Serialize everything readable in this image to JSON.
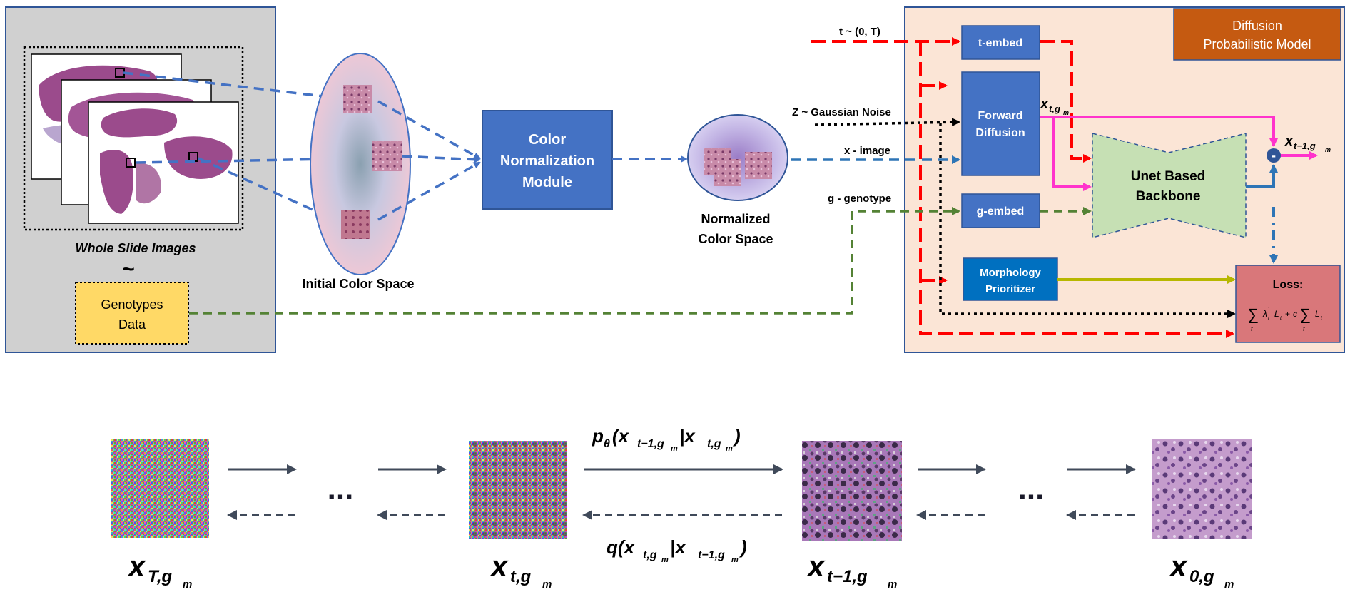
{
  "left_panel": {
    "wsi_caption": "Whole Slide Images",
    "tilde": "~",
    "genotypes_line1": "Genotypes",
    "genotypes_line2": "Data"
  },
  "initial_space": {
    "caption": "Initial Color Space"
  },
  "color_norm": {
    "line1": "Color",
    "line2": "Normalization",
    "line3": "Module"
  },
  "normalized_space": {
    "line1": "Normalized",
    "line2": "Color Space"
  },
  "inputs": {
    "t_label": "t ~ (0, T)",
    "z_label": "Z ~ Gaussian Noise",
    "x_label": "x - image",
    "g_label": "g - genotype"
  },
  "model": {
    "title_line1": "Diffusion",
    "title_line2": "Probabilistic Model",
    "t_embed": "t-embed",
    "forward_line1": "Forward",
    "forward_line2": "Diffusion",
    "g_embed": "g-embed",
    "morph_line1": "Morphology",
    "morph_line2": "Prioritizer",
    "unet_line1": "Unet Based",
    "unet_line2": "Backbone",
    "loss_label": "Loss:",
    "minus": "-",
    "xt_sub_var": "x",
    "xt_sub": "t,g",
    "xt_sub_m": "m",
    "xt1_var": "x",
    "xt1_sub": "t−1,g",
    "xt1_sub_m": "m"
  },
  "chain": {
    "dots_left": "...",
    "dots_right": "...",
    "p_label": "p",
    "p_theta": "θ",
    "p_args": "(x",
    "p_sub1": "t−1,g",
    "p_mid": "|x",
    "p_sub2": "t,g",
    "p_end": ")",
    "q_label": "q",
    "q_args": "(x",
    "q_sub1": "t,g",
    "q_mid": "|x",
    "q_sub2": "t−1,g",
    "q_end": ")",
    "sub_m": "m",
    "labels": [
      {
        "var": "x",
        "sub": "T,g",
        "m": "m"
      },
      {
        "var": "x",
        "sub": "t,g",
        "m": "m"
      },
      {
        "var": "x",
        "sub": "t−1,g",
        "m": "m"
      },
      {
        "var": "x",
        "sub": "0,g",
        "m": "m"
      }
    ]
  },
  "colors": {
    "blue_box": "#4472c4",
    "dark_blue": "#2f5597",
    "red": "#ff0000",
    "green": "#548235",
    "magenta": "#ff33cc",
    "olive": "#b7b700",
    "model_bg": "#fbe5d6",
    "left_bg": "#d0d0d0",
    "unet": "#c6e0b4",
    "loss": "#d9777a",
    "title_box": "#c55a11",
    "geno": "#ffd966",
    "arrow_gray": "#404a5a"
  }
}
